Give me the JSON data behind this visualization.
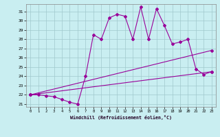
{
  "xlabel": "Windchill (Refroidissement éolien,°C)",
  "x_ticks": [
    0,
    1,
    2,
    3,
    4,
    5,
    6,
    7,
    8,
    9,
    10,
    11,
    12,
    13,
    14,
    15,
    16,
    17,
    18,
    19,
    20,
    21,
    22,
    23
  ],
  "ylim": [
    20.7,
    31.8
  ],
  "xlim": [
    -0.5,
    23.5
  ],
  "yticks": [
    21,
    22,
    23,
    24,
    25,
    26,
    27,
    28,
    29,
    30,
    31
  ],
  "bg_color": "#c9eef1",
  "grid_color": "#a0c8cc",
  "line_color": "#990099",
  "line1": {
    "x": [
      0,
      1,
      2,
      3,
      4,
      5,
      6,
      7,
      8,
      9,
      10,
      11,
      12,
      13,
      14,
      15,
      16,
      17,
      18,
      19,
      20,
      21,
      22,
      23
    ],
    "y": [
      22.0,
      22.0,
      21.9,
      21.8,
      21.5,
      21.2,
      21.0,
      24.0,
      28.5,
      28.0,
      30.3,
      30.7,
      30.5,
      28.0,
      31.5,
      28.0,
      31.3,
      29.5,
      27.5,
      27.7,
      28.0,
      24.8,
      24.2,
      24.5
    ]
  },
  "line2": {
    "x": [
      0,
      23
    ],
    "y": [
      22.0,
      24.5
    ]
  },
  "line3": {
    "x": [
      0,
      23
    ],
    "y": [
      22.0,
      26.8
    ]
  }
}
